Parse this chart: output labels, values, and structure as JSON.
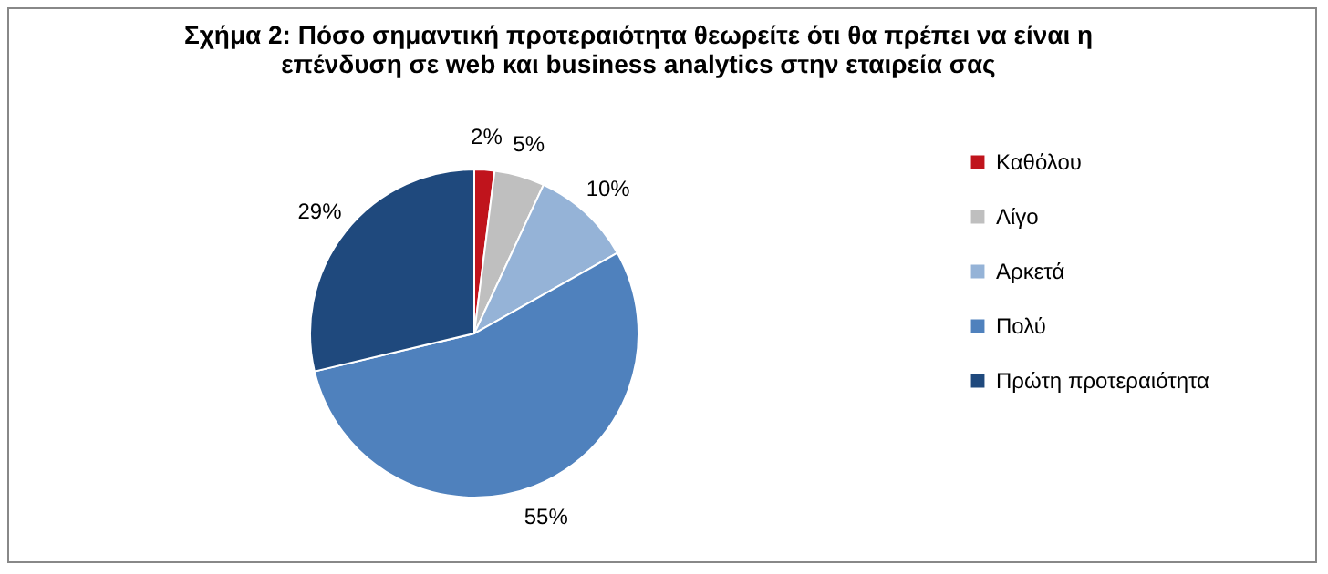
{
  "chart_data": {
    "type": "pie",
    "title": "Σχήμα 2:  Πόσο σημαντική προτεραιότητα θεωρείτε ότι θα πρέπει να είναι η επένδυση σε web και business analytics στην εταιρεία σας",
    "categories": [
      "Καθόλου",
      "Λίγο",
      "Αρκετά",
      "Πολύ",
      "Πρώτη προτεραιότητα"
    ],
    "values": [
      2,
      5,
      10,
      55,
      29
    ],
    "colors": [
      "#c0141c",
      "#bfbfbf",
      "#95b3d7",
      "#4f81bd",
      "#1f497d"
    ],
    "value_labels": [
      "2%",
      "5%",
      "10%",
      "55%",
      "29%"
    ],
    "legend": "right"
  }
}
